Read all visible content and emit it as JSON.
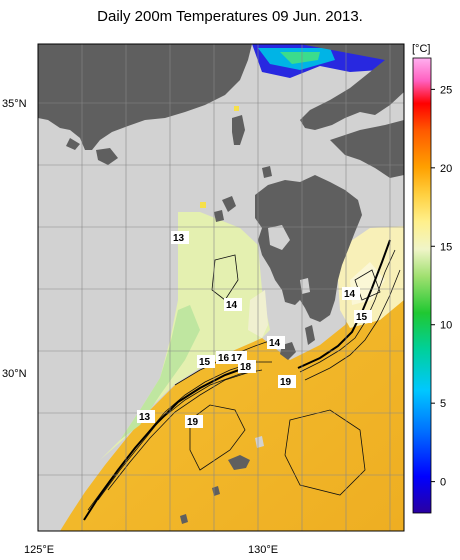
{
  "title": "Daily 200m Temperatures 09 Jun. 2013.",
  "axes": {
    "lat_labels": [
      {
        "value": 35,
        "text": "35°N"
      },
      {
        "value": 30,
        "text": "30°N"
      }
    ],
    "lon_labels": [
      {
        "value": 125,
        "text": "125°E"
      },
      {
        "value": 130,
        "text": "130°E"
      }
    ]
  },
  "colorbar": {
    "unit": "[°C]",
    "ticks": [
      "25",
      "20",
      "15",
      "10",
      "5",
      "0"
    ],
    "min": -2,
    "max": 27
  },
  "contour_labels": [
    "13",
    "14",
    "14",
    "14",
    "15",
    "15",
    "16",
    "17",
    "18",
    "19",
    "13",
    "19"
  ],
  "colors": {
    "land": "#5f5f5f",
    "no_data": "#d2d2d2",
    "warm_water": "#f0b428",
    "cool_water": "#e6f2b4"
  }
}
